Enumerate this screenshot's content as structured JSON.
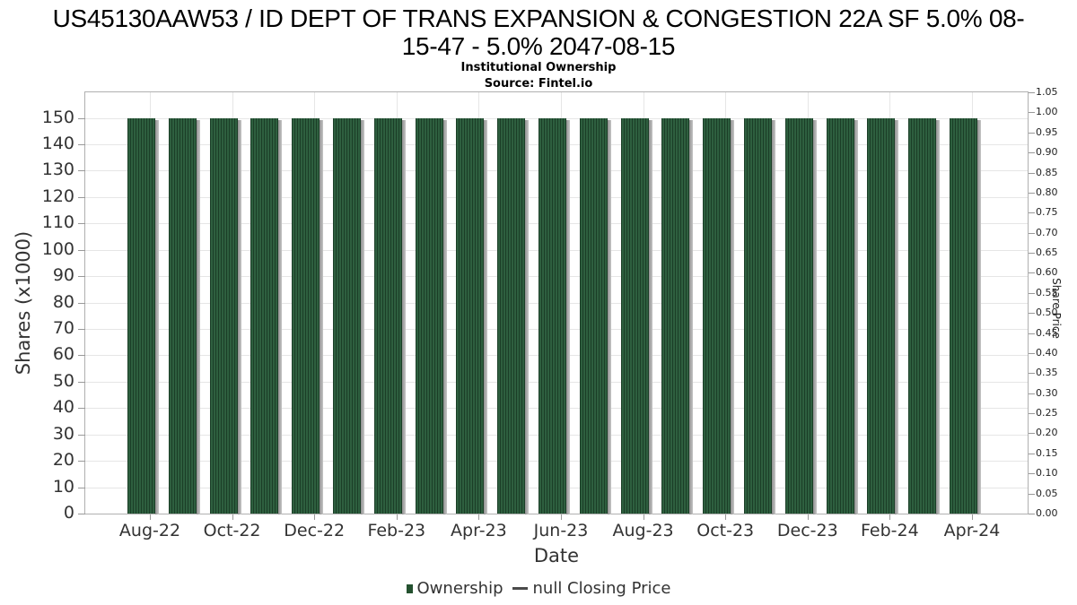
{
  "header": {
    "title_line1": "US45130AAW53 / ID DEPT OF TRANS EXPANSION & CONGESTION 22A SF 5.0% 08-",
    "title_line2": "15-47 - 5.0% 2047-08-15",
    "subtitle": "Institutional Ownership",
    "source": "Source: Fintel.io"
  },
  "legend": {
    "ownership": "Ownership",
    "closing_price": "null Closing Price"
  },
  "colors": {
    "bar_green": "#2e5f3f",
    "bar_stripe_dark": "#1b3e27",
    "bar_shadow": "#a6a6a6",
    "grid": "#e6e6e6",
    "axis_border": "#b0b0b0",
    "tick": "#999999",
    "text": "#333333",
    "title": "#000000"
  },
  "chart_data": {
    "type": "bar",
    "title": "US45130AAW53 / ID DEPT OF TRANS EXPANSION & CONGESTION 22A SF 5.0% 08-15-47 - 5.0% 2047-08-15",
    "subtitle": "Institutional Ownership",
    "source": "Source: Fintel.io",
    "xlabel": "Date",
    "ylabel_left": "Shares (x1000)",
    "ylabel_right": "Share Price",
    "categories": [
      "Aug-22",
      "Sep-22",
      "Oct-22",
      "Nov-22",
      "Dec-22",
      "Jan-23",
      "Feb-23",
      "Mar-23",
      "Apr-23",
      "May-23",
      "Jun-23",
      "Jul-23",
      "Aug-23",
      "Sep-23",
      "Oct-23",
      "Nov-23",
      "Dec-23",
      "Jan-24",
      "Feb-24",
      "Mar-24",
      "Apr-24"
    ],
    "series": [
      {
        "name": "Ownership",
        "unit": "thousand shares",
        "values": [
          150,
          150,
          150,
          150,
          150,
          150,
          150,
          150,
          150,
          150,
          150,
          150,
          150,
          150,
          150,
          150,
          150,
          150,
          150,
          150,
          150
        ],
        "render_note": "each month drawn as a cluster of ~10 thin daily bars, all at 150"
      },
      {
        "name": "null Closing Price",
        "values": [],
        "render_note": "no price data plotted"
      }
    ],
    "x_tick_labels": [
      "Aug-22",
      "Oct-22",
      "Dec-22",
      "Feb-23",
      "Apr-23",
      "Jun-23",
      "Aug-23",
      "Oct-23",
      "Dec-23",
      "Feb-24",
      "Apr-24"
    ],
    "left_ticks": [
      0,
      10,
      20,
      30,
      40,
      50,
      60,
      70,
      80,
      90,
      100,
      110,
      120,
      130,
      140,
      150
    ],
    "right_ticks": [
      "0.00",
      "0.05",
      "0.10",
      "0.15",
      "0.20",
      "0.25",
      "0.30",
      "0.35",
      "0.40",
      "0.45",
      "0.50",
      "0.55",
      "0.60",
      "0.65",
      "0.70",
      "0.75",
      "0.80",
      "0.85",
      "0.90",
      "0.95",
      "1.00",
      "1.05"
    ],
    "ylim_left": [
      0,
      159.7
    ],
    "ylim_right": [
      0,
      1.05
    ],
    "grid": true,
    "legend_position": "bottom"
  }
}
